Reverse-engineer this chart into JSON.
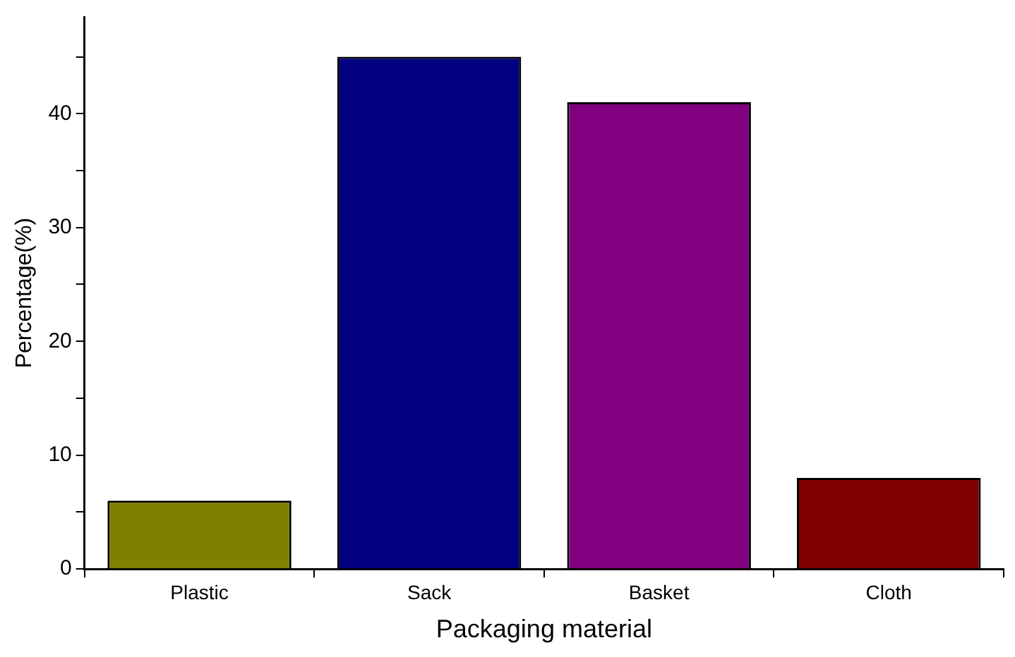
{
  "chart_data": {
    "type": "bar",
    "xlabel": "Packaging material",
    "ylabel": "Percentage(%)",
    "categories": [
      "Plastic",
      "Sack",
      "Basket",
      "Cloth"
    ],
    "values": [
      6,
      45,
      41,
      8
    ],
    "colors": [
      "#808000",
      "#000080",
      "#800080",
      "#800000"
    ],
    "ylim": [
      0,
      48.5
    ],
    "yticks": [
      0,
      {
        "value": 5,
        "label": null
      },
      10,
      {
        "value": 15,
        "label": null
      },
      20,
      {
        "value": 25,
        "label": null
      },
      30,
      {
        "value": 35,
        "label": null
      },
      40,
      {
        "value": 45,
        "label": null
      }
    ],
    "grid": false,
    "legend": false
  }
}
